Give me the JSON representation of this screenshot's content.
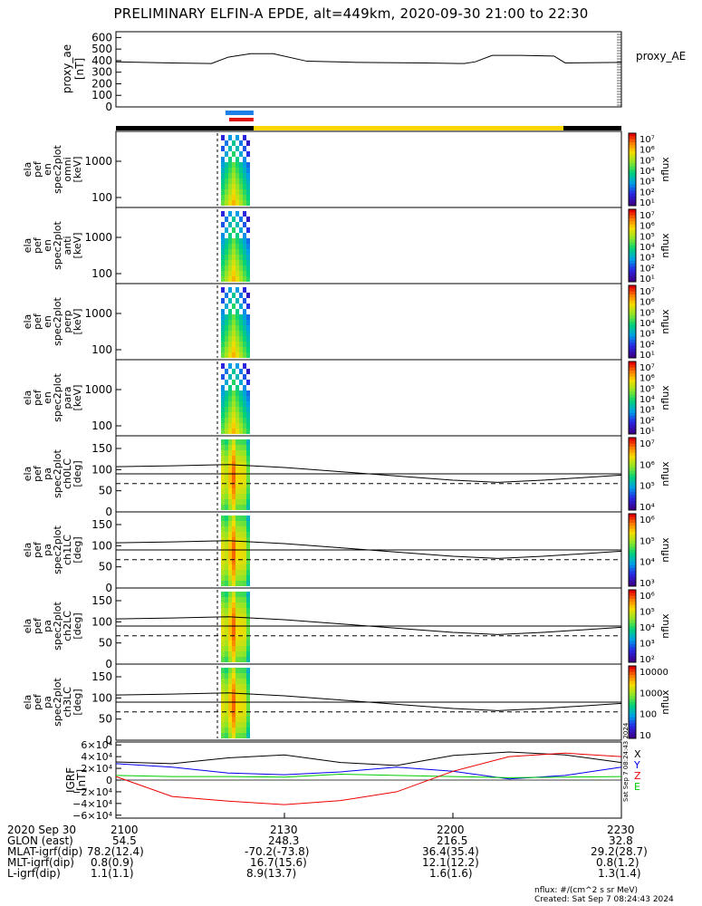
{
  "title": "PRELIMINARY ELFIN-A EPDE, alt=449km, 2020-09-30 21:00 to 22:30",
  "colors": {
    "eclipse_bar": "#000000",
    "sunlit_bar": "#ffd700",
    "science_blue": "#1e7fe8",
    "science_red": "#e01010",
    "bx": "#000000",
    "by": "#0000ee",
    "bz": "#00cc00",
    "btotal_red": "#ee0000"
  },
  "panels": [
    {
      "id": "proxy_ae",
      "ylabel": [
        "proxy_ae",
        "[nT]"
      ],
      "right_label": "proxy_AE",
      "ticks": [
        "600",
        "500",
        "400",
        "300",
        "200",
        "100",
        "0"
      ]
    },
    {
      "id": "en_omni",
      "ylabel": [
        "ela",
        "pef",
        "en",
        "spec2plot",
        "omni",
        "[keV]"
      ],
      "ticks": [
        "1000",
        "100"
      ],
      "colorbar": {
        "label": "nflux",
        "ticks": [
          "10⁷",
          "10⁶",
          "10⁵",
          "10⁴",
          "10³",
          "10²",
          "10¹"
        ]
      }
    },
    {
      "id": "en_anti",
      "ylabel": [
        "ela",
        "pef",
        "en",
        "spec2plot",
        "anti",
        "[keV]"
      ],
      "ticks": [
        "1000",
        "100"
      ],
      "colorbar": {
        "label": "nflux",
        "ticks": [
          "10⁷",
          "10⁶",
          "10⁵",
          "10⁴",
          "10³",
          "10²",
          "10¹"
        ]
      }
    },
    {
      "id": "en_perp",
      "ylabel": [
        "ela",
        "pef",
        "en",
        "spec2plot",
        "perp",
        "[keV]"
      ],
      "ticks": [
        "1000",
        "100"
      ],
      "colorbar": {
        "label": "nflux",
        "ticks": [
          "10⁷",
          "10⁶",
          "10⁵",
          "10⁴",
          "10³",
          "10²",
          "10¹"
        ]
      }
    },
    {
      "id": "en_para",
      "ylabel": [
        "ela",
        "pef",
        "en",
        "spec2plot",
        "para",
        "[keV]"
      ],
      "ticks": [
        "1000",
        "100"
      ],
      "colorbar": {
        "label": "nflux",
        "ticks": [
          "10⁷",
          "10⁶",
          "10⁵",
          "10⁴",
          "10³",
          "10²",
          "10¹"
        ]
      }
    },
    {
      "id": "ch0lc",
      "ylabel": [
        "ela",
        "pef",
        "pa",
        "spec2plot",
        "ch0LC",
        "[deg]"
      ],
      "ticks": [
        "150",
        "100",
        "50",
        "0"
      ],
      "colorbar": {
        "label": "nflux",
        "ticks": [
          "10⁷",
          "10⁶",
          "10⁵",
          "10⁴"
        ]
      }
    },
    {
      "id": "ch1lc",
      "ylabel": [
        "ela",
        "pef",
        "pa",
        "spec2plot",
        "ch1LC",
        "[deg]"
      ],
      "ticks": [
        "150",
        "100",
        "50",
        "0"
      ],
      "colorbar": {
        "label": "nflux",
        "ticks": [
          "10⁶",
          "10⁵",
          "10⁴",
          "10³"
        ]
      }
    },
    {
      "id": "ch2lc",
      "ylabel": [
        "ela",
        "pef",
        "pa",
        "spec2plot",
        "ch2LC",
        "[deg]"
      ],
      "ticks": [
        "150",
        "100",
        "50",
        "0"
      ],
      "colorbar": {
        "label": "nflux",
        "ticks": [
          "10⁶",
          "10⁵",
          "10⁴",
          "10³",
          "10²"
        ]
      }
    },
    {
      "id": "ch3lc",
      "ylabel": [
        "ela",
        "pef",
        "pa",
        "spec2plot",
        "ch3LC",
        "[deg]"
      ],
      "ticks": [
        "150",
        "100",
        "50",
        "0"
      ],
      "colorbar": {
        "label": "nflux",
        "ticks": [
          "10000",
          "1000",
          "100",
          "10"
        ]
      }
    },
    {
      "id": "igrf",
      "ylabel": [
        "IGRF",
        "[nT]"
      ],
      "ticks": [
        "6×10⁴",
        "4×10⁴",
        "2×10⁴",
        "0",
        "−2×10⁴",
        "−4×10⁴",
        "−6×10⁴"
      ],
      "legend": [
        "X",
        "Y",
        "Z",
        "E"
      ]
    }
  ],
  "chart_data": {
    "type": "line",
    "title": "PRELIMINARY ELFIN-A EPDE, alt=449km, 2020-09-30 21:00 to 22:30",
    "xlim": [
      0,
      90
    ],
    "x_ticks_minutes": [
      0,
      30,
      60,
      90
    ],
    "proxy_ae": {
      "ylim": [
        0,
        650
      ],
      "x": [
        0,
        10,
        17,
        20,
        24,
        28,
        34,
        43,
        55,
        62,
        64,
        67,
        72,
        78,
        80,
        90
      ],
      "y": [
        390,
        380,
        375,
        430,
        460,
        460,
        395,
        385,
        380,
        375,
        390,
        445,
        445,
        440,
        380,
        385
      ]
    },
    "science_zone_minutes": [
      19.5,
      24.5
    ],
    "lc_angle_deg": {
      "x": [
        0,
        10,
        20,
        30,
        40,
        50,
        60,
        68,
        76,
        90
      ],
      "solid_upper": [
        107,
        109,
        112,
        105,
        95,
        85,
        75,
        70,
        75,
        87
      ],
      "solid_lower": [
        90,
        90,
        90,
        90,
        90,
        90,
        90,
        90,
        90,
        90
      ],
      "dashed": [
        67,
        67,
        67,
        67,
        67,
        67,
        67,
        67,
        67,
        67
      ]
    },
    "igrf": {
      "ylim": [
        -65000.0,
        65000.0
      ],
      "x": [
        0,
        10,
        20,
        30,
        40,
        50,
        60,
        70,
        80,
        90
      ],
      "series": [
        {
          "name": "X",
          "values": [
            31000,
            28000,
            38000,
            43000,
            30000,
            25000,
            42000,
            48000,
            43000,
            30000
          ]
        },
        {
          "name": "Y",
          "values": [
            28000,
            22000,
            12000,
            9000,
            14000,
            22000,
            15000,
            2000,
            8000,
            22000
          ]
        },
        {
          "name": "Z",
          "values": [
            8000,
            6000,
            6000,
            5000,
            10000,
            8000,
            6000,
            4000,
            5000,
            6000
          ]
        },
        {
          "name": "E",
          "values": [
            6000,
            -28000,
            -36000,
            -42000,
            -35000,
            -20000,
            15000,
            40000,
            46000,
            40000
          ]
        }
      ]
    }
  },
  "footer": {
    "rows": [
      [
        "2020 Sep 30",
        "2100",
        "2130",
        "2200",
        "2230"
      ],
      [
        "GLON (east)",
        "54.5",
        "248.3",
        "216.5",
        "32.8"
      ],
      [
        "MLAT-igrf(dip)",
        "78.2(12.4)",
        "-70.2(-73.8)",
        "36.4(35.4)",
        "29.2(28.7)"
      ],
      [
        "MLT-igrf(dip)",
        "0.8(0.9)",
        "16.7(15.6)",
        "12.1(12.2)",
        "0.8(1.2)"
      ],
      [
        "L-igrf(dip)",
        "1.1(1.1)",
        "8.9(13.7)",
        "1.6(1.6)",
        "1.3(1.4)"
      ]
    ],
    "units": "nflux: #/(cm^2 s sr MeV)",
    "created": "Created: Sat Sep  7 08:24:43 2024",
    "side_stamp": "Sat Sep  7 08:24:43 2024"
  }
}
